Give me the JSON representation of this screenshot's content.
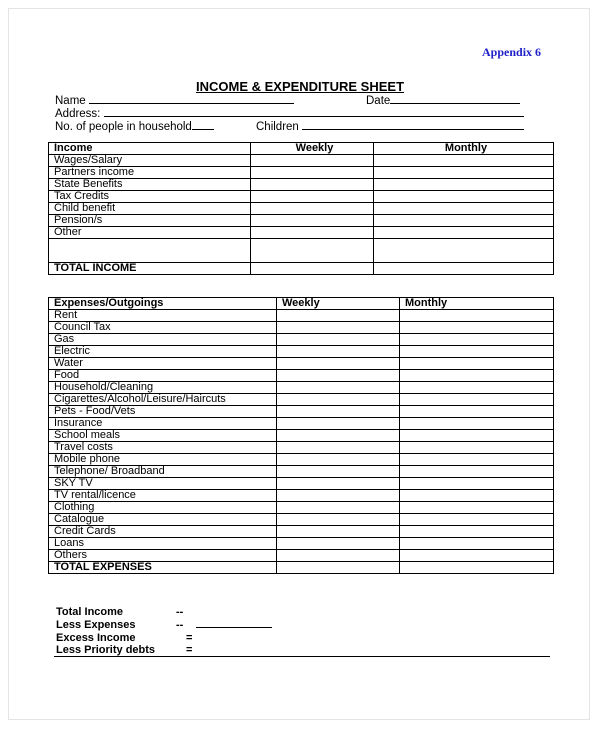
{
  "appendix": "Appendix 6",
  "title": "INCOME & EXPENDITURE SHEET",
  "fields": {
    "name": "Name",
    "date": "Date",
    "address": "Address:",
    "people": "No. of people in household",
    "children": "Children"
  },
  "income_table": {
    "headers": [
      "Income",
      "Weekly",
      "Monthly"
    ],
    "rows": [
      "Wages/Salary",
      "Partners income",
      "State Benefits",
      "Tax Credits",
      "Child benefit",
      "Pension/s",
      "Other"
    ],
    "total": "TOTAL INCOME"
  },
  "expenses_table": {
    "headers": [
      "Expenses/Outgoings",
      "Weekly",
      "Monthly"
    ],
    "rows": [
      "Rent",
      "Council Tax",
      "Gas",
      "Electric",
      "Water",
      "Food",
      "Household/Cleaning",
      "Cigarettes/Alcohol/Leisure/Haircuts",
      "Pets - Food/Vets",
      "Insurance",
      "School meals",
      "Travel costs",
      "Mobile phone",
      "Telephone/ Broadband",
      "SKY TV",
      "TV rental/licence",
      "Clothing",
      "Catalogue",
      "Credit Cards",
      "Loans",
      "Others"
    ],
    "total": "TOTAL EXPENSES"
  },
  "summary": [
    {
      "label": "Total Income",
      "op": "--"
    },
    {
      "label": "Less Expenses",
      "op": "--"
    },
    {
      "label": "Excess Income",
      "op": "="
    },
    {
      "label": "Less Priority debts",
      "op": "="
    }
  ],
  "colors": {
    "appendix": "#2020c8"
  }
}
